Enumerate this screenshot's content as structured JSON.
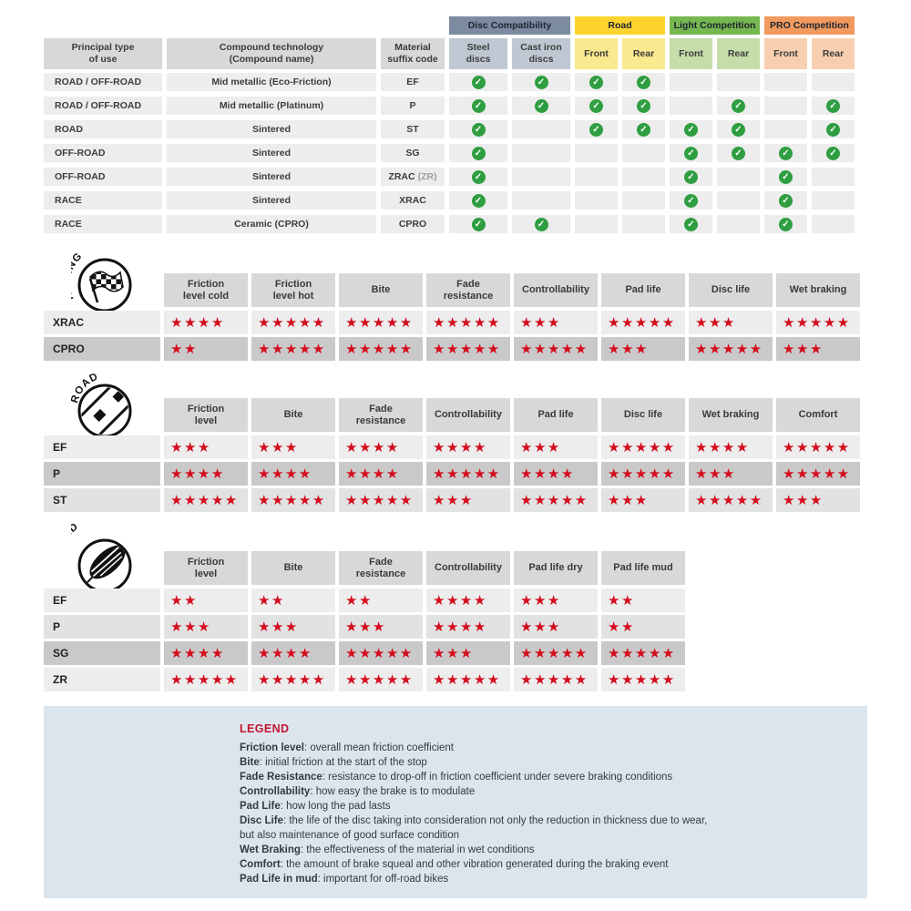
{
  "compat": {
    "col_headers": [
      "Principal type\nof use",
      "Compound technology\n(Compound name)",
      "Material\nsuffix code"
    ],
    "groups": [
      {
        "label": "Disc Compatibility",
        "color": "#7d8ba0",
        "sub_color": "#bfc8d2",
        "subs": [
          "Steel\ndiscs",
          "Cast iron\ndiscs"
        ]
      },
      {
        "label": "Road",
        "color": "#fdd42e",
        "sub_color": "#fae98e",
        "subs": [
          "Front",
          "Rear"
        ]
      },
      {
        "label": "Light Competition",
        "color": "#77b750",
        "sub_color": "#c5dda9",
        "subs": [
          "Front",
          "Rear"
        ]
      },
      {
        "label": "PRO Competition",
        "color": "#f29a5e",
        "sub_color": "#f7cfb0",
        "subs": [
          "Front",
          "Rear"
        ]
      }
    ],
    "check_icon": "green-circle-check",
    "rows": [
      {
        "use": "ROAD / OFF-ROAD",
        "compound": "Mid metallic (Eco-Friction)",
        "code": "EF",
        "code_note": "",
        "checks": [
          1,
          1,
          1,
          1,
          0,
          0,
          0,
          0
        ]
      },
      {
        "use": "ROAD / OFF-ROAD",
        "compound": "Mid metallic (Platinum)",
        "code": "P",
        "code_note": "",
        "checks": [
          1,
          1,
          1,
          1,
          0,
          1,
          0,
          1
        ]
      },
      {
        "use": "ROAD",
        "compound": "Sintered",
        "code": "ST",
        "code_note": "",
        "checks": [
          1,
          0,
          1,
          1,
          1,
          1,
          0,
          1
        ]
      },
      {
        "use": "OFF-ROAD",
        "compound": "Sintered",
        "code": "SG",
        "code_note": "",
        "checks": [
          1,
          0,
          0,
          0,
          1,
          1,
          1,
          1
        ]
      },
      {
        "use": "OFF-ROAD",
        "compound": "Sintered",
        "code": "ZRAC",
        "code_note": "(ZR)",
        "checks": [
          1,
          0,
          0,
          0,
          1,
          0,
          1,
          0
        ]
      },
      {
        "use": "RACE",
        "compound": "Sintered",
        "code": "XRAC",
        "code_note": "",
        "checks": [
          1,
          0,
          0,
          0,
          1,
          0,
          1,
          0
        ]
      },
      {
        "use": "RACE",
        "compound": "Ceramic (CPRO)",
        "code": "CPRO",
        "code_note": "",
        "checks": [
          1,
          1,
          0,
          0,
          1,
          0,
          1,
          0
        ]
      }
    ]
  },
  "rating_tables": [
    {
      "id": "racing",
      "arc_label": "RACING",
      "icon": "checkered-flag-icon",
      "columns": [
        "Friction\nlevel cold",
        "Friction\nlevel hot",
        "Bite",
        "Fade\nresistance",
        "Controllability",
        "Pad life",
        "Disc life",
        "Wet braking"
      ],
      "rows": [
        {
          "code": "XRAC",
          "shade": "light",
          "stars": [
            4,
            5,
            5,
            5,
            3,
            5,
            3,
            5
          ]
        },
        {
          "code": "CPRO",
          "shade": "dark",
          "stars": [
            2,
            5,
            5,
            5,
            5,
            3,
            5,
            3
          ]
        }
      ]
    },
    {
      "id": "road",
      "arc_label": "ROAD",
      "icon": "road-icon",
      "columns": [
        "Friction\nlevel",
        "Bite",
        "Fade\nresistance",
        "Controllability",
        "Pad life",
        "Disc life",
        "Wet braking",
        "Comfort"
      ],
      "rows": [
        {
          "code": "EF",
          "shade": "light",
          "stars": [
            3,
            3,
            4,
            4,
            3,
            5,
            4,
            5
          ]
        },
        {
          "code": "P",
          "shade": "dark",
          "stars": [
            4,
            4,
            4,
            5,
            4,
            5,
            3,
            5
          ]
        },
        {
          "code": "ST",
          "shade": "mid",
          "stars": [
            5,
            5,
            5,
            3,
            5,
            3,
            5,
            3
          ]
        }
      ]
    },
    {
      "id": "offroad",
      "arc_label": "OFF-ROAD",
      "icon": "mud-splat-icon",
      "columns": [
        "Friction\nlevel",
        "Bite",
        "Fade\nresistance",
        "Controllability",
        "Pad life dry",
        "Pad life mud"
      ],
      "rows": [
        {
          "code": "EF",
          "shade": "light",
          "stars": [
            2,
            2,
            2,
            4,
            3,
            2
          ]
        },
        {
          "code": "P",
          "shade": "mid",
          "stars": [
            3,
            3,
            3,
            4,
            3,
            2
          ]
        },
        {
          "code": "SG",
          "shade": "dark",
          "stars": [
            4,
            4,
            5,
            3,
            5,
            5
          ]
        },
        {
          "code": "ZR",
          "shade": "light",
          "stars": [
            5,
            5,
            5,
            5,
            5,
            5
          ]
        }
      ]
    }
  ],
  "legend": {
    "title": "LEGEND",
    "lines": [
      {
        "term": "Friction level",
        "text": ": overall mean friction coefficient"
      },
      {
        "term": "Bite",
        "text": ": initial friction at the start of the stop"
      },
      {
        "term": "Fade Resistance",
        "text": ": resistance to drop-off in friction coefficient under severe braking conditions"
      },
      {
        "term": "Controllability",
        "text": ": how easy the brake is to modulate"
      },
      {
        "term": "Pad Life",
        "text": ": how long the pad lasts"
      },
      {
        "term": "Disc Life",
        "text": ": the life of the disc taking into consideration not only the reduction in thickness due to wear,"
      },
      {
        "term": "",
        "text": "but also maintenance of good surface condition"
      },
      {
        "term": "Wet Braking",
        "text": ": the effectiveness of the material in wet conditions"
      },
      {
        "term": "Comfort",
        "text": ": the amount of brake squeal and other vibration generated during the braking event"
      },
      {
        "term": "Pad Life in mud",
        "text": ": important for off-road bikes"
      }
    ]
  },
  "colors": {
    "check_green": "#2e9e41",
    "star_red": "#d30d1e",
    "legend_bg": "#dde5ec",
    "legend_title_red": "#c21531",
    "header_gray": "#d8d8d8",
    "row_light": "#ededed",
    "row_mid": "#e2e2e2",
    "row_dark": "#c9c9c9"
  }
}
